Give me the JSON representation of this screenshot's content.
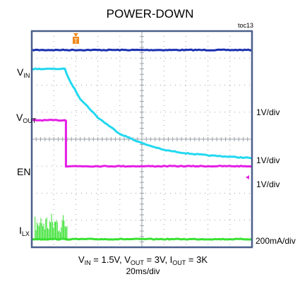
{
  "title": "POWER-DOWN",
  "tag": "toc13",
  "trigger_marker": "T",
  "channels": {
    "vin": {
      "main": "V",
      "sub": "IN",
      "color": "#1a2fb0"
    },
    "vout": {
      "main": "V",
      "sub": "OUT",
      "color": "#22d8f0",
      "scale": "1V/div"
    },
    "en": {
      "main": "EN",
      "color": "#e51ee5",
      "scale": "1V/div"
    },
    "ilx": {
      "main": "I",
      "sub": "LX",
      "color": "#38e030",
      "scale": "200mA/div"
    }
  },
  "extra_scale": "1V/div",
  "caption": {
    "vin_main": "V",
    "vin_sub": "IN",
    "vin_val": " = 1.5V, ",
    "vout_main": "V",
    "vout_sub": "OUT",
    "vout_val": " = 3V, ",
    "iout_main": "I",
    "iout_sub": "OUT",
    "iout_val": " = 3K",
    "timebase": "20ms/div"
  },
  "colors": {
    "frame": "#4b5f8c",
    "grid": "#9aa0a8",
    "trigger": "#f08a1c"
  },
  "chart_data": {
    "type": "line",
    "title": "POWER-DOWN",
    "grid": true,
    "divisions": {
      "x": 10,
      "y": 8
    },
    "timebase": "20ms/div",
    "x_unit": "divisions",
    "x_range": [
      0,
      10
    ],
    "series": [
      {
        "name": "VIN",
        "scale": null,
        "points": [
          [
            0,
            7.3
          ],
          [
            10,
            7.3
          ]
        ]
      },
      {
        "name": "VOUT",
        "scale": "1V/div",
        "points": [
          [
            0,
            6.6
          ],
          [
            1.5,
            6.6
          ],
          [
            1.7,
            6.2
          ],
          [
            2.2,
            5.5
          ],
          [
            3.0,
            4.8
          ],
          [
            4.0,
            4.2
          ],
          [
            5.0,
            3.85
          ],
          [
            6.0,
            3.6
          ],
          [
            7.0,
            3.48
          ],
          [
            8.0,
            3.4
          ],
          [
            10.0,
            3.3
          ]
        ]
      },
      {
        "name": "EN",
        "scale": "1V/div",
        "points": [
          [
            0,
            4.7
          ],
          [
            1.55,
            4.7
          ],
          [
            1.55,
            3.0
          ],
          [
            10,
            3.0
          ]
        ]
      },
      {
        "name": "ILX",
        "scale": "200mA/div",
        "points": [
          [
            0,
            0.3
          ],
          [
            10,
            0.3
          ]
        ]
      }
    ]
  }
}
